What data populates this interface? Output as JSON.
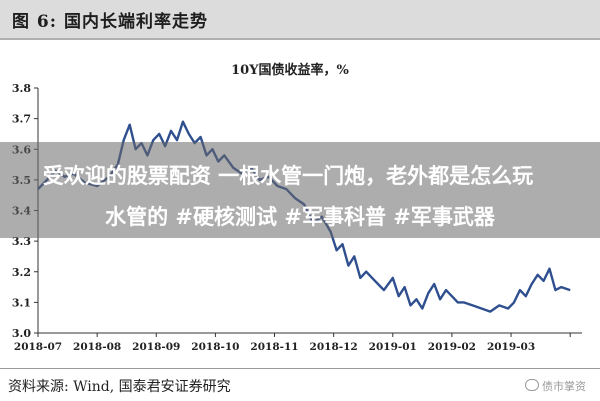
{
  "figure_label": "图 6:  国内长端利率走势",
  "source_note": "资料来源:  Wind,  国泰君安证券研究",
  "watermark": "债市掌资",
  "overlay": {
    "line1": "受欢迎的股票配资 一根水管一门炮，老外都是怎么玩",
    "line2": "水管的 #硬核测试 #军事科普 #军事武器"
  },
  "colors": {
    "line": "#2f4f8f",
    "axis": "#333333",
    "header_bg": "#dcdcdc"
  },
  "chart_data": {
    "type": "line",
    "title": "10Y国债收益率，%",
    "xlabel": "",
    "ylabel": "",
    "ylim": [
      3.0,
      3.8
    ],
    "yticks": [
      3.0,
      3.1,
      3.2,
      3.3,
      3.4,
      3.5,
      3.6,
      3.7,
      3.8
    ],
    "ytick_labels": [
      "3.0",
      "3.1",
      "3.2",
      "3.3",
      "3.4",
      "3.5",
      "3.6",
      "3.7",
      "3.8"
    ],
    "xlim": [
      0,
      9.2
    ],
    "xticks": [
      0,
      1,
      2,
      3,
      4,
      5,
      6,
      7,
      8,
      9
    ],
    "xtick_labels": [
      "2018-07",
      "2018-08",
      "2018-09",
      "2018-10",
      "2018-11",
      "2018-12",
      "2019-01",
      "2019-02",
      "2019-03",
      ""
    ],
    "grid": false,
    "legend": "none",
    "series": [
      {
        "x": [
          0.0,
          0.15,
          0.3,
          0.45,
          0.6,
          0.8,
          1.0,
          1.2,
          1.35,
          1.45,
          1.55,
          1.65,
          1.75,
          1.85,
          1.95,
          2.05,
          2.15,
          2.25,
          2.35,
          2.45,
          2.55,
          2.65,
          2.75,
          2.85,
          2.95,
          3.05,
          3.15,
          3.3,
          3.45,
          3.6,
          3.75,
          3.9,
          4.05,
          4.2,
          4.35,
          4.5,
          4.65,
          4.8,
          4.95,
          5.05,
          5.15,
          5.25,
          5.35,
          5.45,
          5.55,
          5.7,
          5.85,
          6.0,
          6.1,
          6.2,
          6.3,
          6.4,
          6.5,
          6.6,
          6.7,
          6.8,
          6.9,
          7.0,
          7.1,
          7.2,
          7.35,
          7.5,
          7.65,
          7.8,
          7.95,
          8.05,
          8.15,
          8.25,
          8.35,
          8.45,
          8.55,
          8.65,
          8.75,
          8.85,
          9.0
        ],
        "y": [
          3.47,
          3.5,
          3.53,
          3.51,
          3.52,
          3.49,
          3.48,
          3.51,
          3.55,
          3.63,
          3.68,
          3.6,
          3.62,
          3.58,
          3.63,
          3.65,
          3.61,
          3.66,
          3.63,
          3.69,
          3.65,
          3.62,
          3.64,
          3.58,
          3.6,
          3.56,
          3.58,
          3.54,
          3.52,
          3.54,
          3.5,
          3.51,
          3.48,
          3.47,
          3.44,
          3.42,
          3.36,
          3.38,
          3.33,
          3.27,
          3.29,
          3.22,
          3.25,
          3.18,
          3.2,
          3.17,
          3.14,
          3.18,
          3.12,
          3.15,
          3.09,
          3.11,
          3.08,
          3.13,
          3.16,
          3.11,
          3.14,
          3.12,
          3.1,
          3.1,
          3.09,
          3.08,
          3.07,
          3.09,
          3.08,
          3.1,
          3.14,
          3.12,
          3.16,
          3.19,
          3.17,
          3.21,
          3.14,
          3.15,
          3.14
        ]
      }
    ]
  }
}
